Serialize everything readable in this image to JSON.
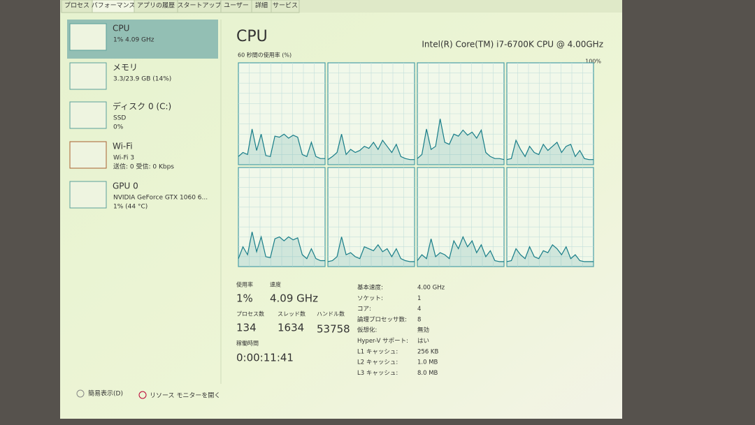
{
  "tabs": [
    "プロセス",
    "パフォーマンス",
    "アプリの履歴",
    "スタートアップ",
    "ユーザー",
    "詳細",
    "サービス"
  ],
  "sidebar": [
    {
      "name": "CPU",
      "lines": [
        "1% 4.09 GHz"
      ]
    },
    {
      "name": "メモリ",
      "lines": [
        "3.3/23.9 GB (14%)"
      ]
    },
    {
      "name": "ディスク 0 (C:)",
      "lines": [
        "SSD",
        "0%"
      ]
    },
    {
      "name": "Wi-Fi",
      "lines": [
        "Wi-Fi 3",
        "送信: 0 受信: 0 Kbps"
      ]
    },
    {
      "name": "GPU 0",
      "lines": [
        "NVIDIA GeForce GTX 1060 6...",
        "1% (44 °C)"
      ]
    }
  ],
  "main": {
    "title": "CPU",
    "processor": "Intel(R) Core(TM) i7-6700K CPU @ 4.00GHz",
    "graph_label": "60 秒間の使用率 (%)",
    "graph_max": "100%",
    "graphs": {
      "ylim": [
        0,
        100
      ],
      "series": [
        {
          "values": [
            8,
            12,
            10,
            35,
            14,
            30,
            9,
            8,
            28,
            27,
            30,
            26,
            29,
            27,
            10,
            8,
            22,
            8,
            6,
            6
          ]
        },
        {
          "values": [
            5,
            8,
            12,
            30,
            10,
            15,
            12,
            14,
            18,
            16,
            22,
            15,
            24,
            18,
            12,
            20,
            8,
            6,
            5,
            5
          ]
        },
        {
          "values": [
            6,
            10,
            35,
            15,
            18,
            45,
            22,
            20,
            30,
            28,
            34,
            29,
            32,
            26,
            34,
            12,
            8,
            6,
            6,
            5
          ]
        },
        {
          "values": [
            5,
            6,
            24,
            15,
            8,
            18,
            12,
            10,
            20,
            14,
            18,
            22,
            12,
            18,
            20,
            8,
            14,
            6,
            5,
            5
          ]
        },
        {
          "values": [
            8,
            20,
            12,
            35,
            15,
            30,
            10,
            9,
            28,
            30,
            26,
            30,
            27,
            29,
            12,
            8,
            18,
            8,
            6,
            6
          ]
        },
        {
          "values": [
            5,
            6,
            10,
            30,
            12,
            14,
            10,
            8,
            20,
            18,
            16,
            22,
            15,
            18,
            10,
            18,
            8,
            6,
            5,
            5
          ]
        },
        {
          "values": [
            6,
            12,
            8,
            28,
            10,
            14,
            12,
            8,
            26,
            18,
            30,
            20,
            26,
            14,
            22,
            10,
            16,
            6,
            5,
            5
          ]
        },
        {
          "values": [
            5,
            6,
            18,
            12,
            8,
            20,
            10,
            8,
            16,
            14,
            22,
            18,
            12,
            20,
            8,
            12,
            6,
            5,
            5,
            5
          ]
        }
      ]
    },
    "stats": [
      {
        "label": "使用率",
        "value": "1%"
      },
      {
        "label": "速度",
        "value": "4.09 GHz"
      },
      {
        "label": "プロセス数",
        "value": "134"
      },
      {
        "label": "スレッド数",
        "value": "1634"
      },
      {
        "label": "ハンドル数",
        "value": "53758"
      },
      {
        "label": "稼働時間",
        "value": "0:00:11:41"
      }
    ],
    "details": [
      {
        "label": "基本速度:",
        "value": "4.00 GHz"
      },
      {
        "label": "ソケット:",
        "value": "1"
      },
      {
        "label": "コア:",
        "value": "4"
      },
      {
        "label": "論理プロセッサ数:",
        "value": "8"
      },
      {
        "label": "仮想化:",
        "value": "無効"
      },
      {
        "label": "Hyper-V サポート:",
        "value": "はい"
      },
      {
        "label": "L1 キャッシュ:",
        "value": "256 KB"
      },
      {
        "label": "L2 キャッシュ:",
        "value": "1.0 MB"
      },
      {
        "label": "L3 キャッシュ:",
        "value": "8.0 MB"
      }
    ]
  },
  "footer": {
    "summary": "簡易表示(D)",
    "monitor": "リソース モニターを開く"
  }
}
